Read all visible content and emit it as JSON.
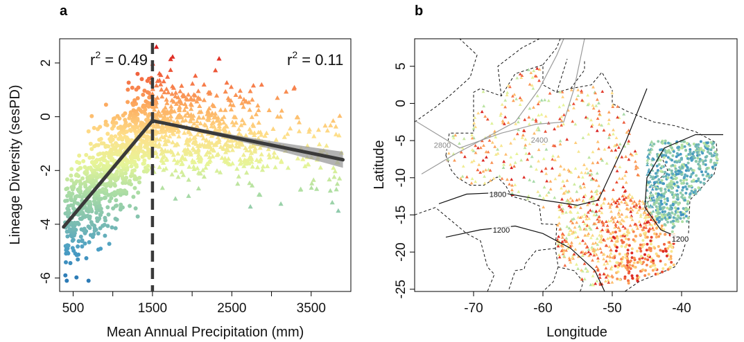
{
  "chart_data": [
    {
      "panel": "a",
      "type": "scatter",
      "xlabel": "Mean Annual Precipitation (mm)",
      "ylabel": "Lineage Diversity (sesPD)",
      "xlim": [
        330,
        4000
      ],
      "ylim": [
        -6.5,
        2.9
      ],
      "xticks": [
        500,
        1000,
        1500,
        2000,
        2500,
        3000,
        3500
      ],
      "xtick_labels": [
        "500",
        "1500",
        "2500",
        "3500"
      ],
      "yticks": [
        2,
        0,
        -2,
        -4,
        -6
      ],
      "ytick_labels": [
        "2",
        "0",
        "-2",
        "-4",
        "-6"
      ],
      "threshold_x": 1500,
      "annotations": [
        {
          "side": "left",
          "base": "r",
          "sup": "2",
          "rest": " = 0.49"
        },
        {
          "side": "right",
          "base": "r",
          "sup": "2",
          "rest": " = 0.11"
        }
      ],
      "segments": [
        {
          "x": [
            380,
            1500
          ],
          "y": [
            -4.1,
            -0.15
          ],
          "r2": 0.49
        },
        {
          "x": [
            1500,
            3900
          ],
          "y": [
            -0.15,
            -1.6
          ],
          "r2": 0.11
        }
      ],
      "marker_rule": "circles for MAP < 1500 mm, triangles for MAP >= 1500 mm",
      "color_scale": "spectral: blue (low sesPD) to red (high sesPD)",
      "n_points": 1500
    },
    {
      "panel": "b",
      "type": "map",
      "xlabel": "Longitude",
      "ylabel": "Latitude",
      "xlim": [
        -78.5,
        -32
      ],
      "ylim": [
        -25.3,
        8.7
      ],
      "xticks": [
        -70,
        -60,
        -50,
        -40
      ],
      "xtick_labels": [
        "-70",
        "-60",
        "-50",
        "-40"
      ],
      "yticks": [
        5,
        0,
        -5,
        -10,
        -15,
        -20,
        -25
      ],
      "ytick_labels": [
        "5",
        "0",
        "-5",
        "-10",
        "-15",
        "-20",
        "-25"
      ],
      "contours": [
        {
          "level": "2800",
          "color": "#999999"
        },
        {
          "level": "2400",
          "color": "#999999"
        },
        {
          "level": "1800",
          "color": "#111111"
        },
        {
          "level": "1200",
          "color": "#111111"
        },
        {
          "level": "1200",
          "color": "#111111"
        }
      ],
      "n_points": 1600
    }
  ],
  "colors": {
    "spectral": [
      "#2c7bb6",
      "#4a9ec4",
      "#7fbfb0",
      "#abdda4",
      "#e6f598",
      "#fee08b",
      "#fdae61",
      "#f46d43",
      "#d7191c"
    ],
    "regression_line": "#3a3a3a",
    "confidence_band": "#9a9a9a"
  }
}
